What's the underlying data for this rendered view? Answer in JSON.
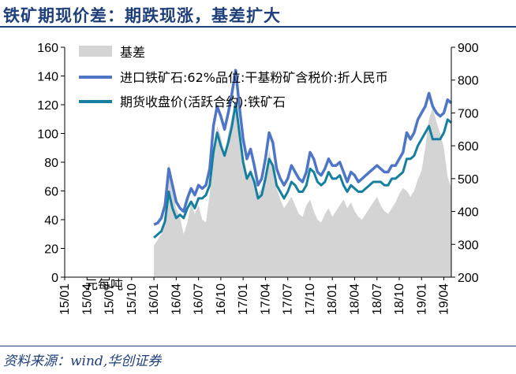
{
  "header": {
    "title": "铁矿期现价差：期跌现涨，基差扩大"
  },
  "footer": {
    "source": "资料来源：wind,华创证券"
  },
  "chart_data": {
    "type": "line",
    "unit_label": "元每吨",
    "left_axis": {
      "min": 0,
      "max": 160,
      "ticks": [
        "0",
        "20",
        "40",
        "60",
        "80",
        "100",
        "120",
        "140",
        "160"
      ]
    },
    "right_axis": {
      "min": 200,
      "max": 900,
      "ticks": [
        "200",
        "300",
        "400",
        "500",
        "600",
        "700",
        "800",
        "900"
      ]
    },
    "x_labels": [
      "15/01",
      "15/04",
      "15/07",
      "15/10",
      "16/01",
      "16/04",
      "16/07",
      "16/10",
      "17/01",
      "17/04",
      "17/07",
      "17/10",
      "18/01",
      "18/04",
      "18/07",
      "18/10",
      "19/01",
      "19/04"
    ],
    "x_range": [
      0,
      52
    ],
    "colors": {
      "basis": "#d4d4d4",
      "spot": "#4f76c6",
      "futures": "#167fa0"
    },
    "legend": [
      {
        "key": "basis",
        "label": "基差"
      },
      {
        "key": "spot",
        "label": "进口铁矿石:62%品位:干基粉矿含税价:折人民币"
      },
      {
        "key": "futures",
        "label": "期货收盘价(活跃合约):铁矿石"
      }
    ],
    "series": [
      {
        "key": "basis",
        "kind": "area",
        "axis": "left",
        "x": [
          12,
          12.5,
          13,
          13.5,
          14,
          14.5,
          15,
          15.5,
          16,
          16.5,
          17,
          17.5,
          18,
          18.5,
          19,
          19.5,
          20,
          20.5,
          21,
          21.5,
          22,
          22.5,
          23,
          23.5,
          24,
          24.5,
          25,
          25.5,
          26,
          26.5,
          27,
          27.5,
          28,
          28.5,
          29,
          29.5,
          30,
          30.5,
          31,
          31.5,
          32,
          32.5,
          33,
          33.5,
          34,
          34.5,
          35,
          35.5,
          36,
          36.5,
          37,
          37.5,
          38,
          38.5,
          39,
          39.5,
          40,
          40.5,
          41,
          41.5,
          42,
          42.5,
          43,
          43.5,
          44,
          44.5,
          45,
          45.5,
          46,
          46.5,
          47,
          47.5,
          48,
          48.5,
          49,
          49.5,
          50,
          50.5,
          51,
          51.5,
          52
        ],
        "y": [
          22,
          26,
          30,
          45,
          80,
          62,
          48,
          42,
          30,
          38,
          52,
          44,
          50,
          40,
          38,
          58,
          90,
          105,
          98,
          85,
          100,
          112,
          120,
          100,
          80,
          70,
          76,
          66,
          58,
          62,
          72,
          88,
          78,
          62,
          54,
          48,
          52,
          56,
          50,
          44,
          42,
          50,
          54,
          46,
          40,
          38,
          44,
          48,
          42,
          46,
          50,
          54,
          48,
          52,
          46,
          42,
          40,
          44,
          48,
          52,
          56,
          50,
          46,
          44,
          48,
          52,
          58,
          62,
          60,
          56,
          60,
          68,
          74,
          90,
          110,
          118,
          108,
          100,
          90,
          70,
          62
        ]
      },
      {
        "key": "spot",
        "kind": "line",
        "axis": "right",
        "x": [
          12,
          12.5,
          13,
          13.5,
          14,
          14.5,
          15,
          15.5,
          16,
          16.5,
          17,
          17.5,
          18,
          18.5,
          19,
          19.5,
          20,
          20.5,
          21,
          21.5,
          22,
          22.5,
          23,
          23.5,
          24,
          24.5,
          25,
          25.5,
          26,
          26.5,
          27,
          27.5,
          28,
          28.5,
          29,
          29.5,
          30,
          30.5,
          31,
          31.5,
          32,
          32.5,
          33,
          33.5,
          34,
          34.5,
          35,
          35.5,
          36,
          36.5,
          37,
          37.5,
          38,
          38.5,
          39,
          39.5,
          40,
          40.5,
          41,
          41.5,
          42,
          42.5,
          43,
          43.5,
          44,
          44.5,
          45,
          45.5,
          46,
          46.5,
          47,
          47.5,
          48,
          48.5,
          49,
          49.5,
          50,
          50.5,
          51,
          51.5,
          52
        ],
        "y": [
          360,
          365,
          380,
          420,
          530,
          480,
          430,
          410,
          400,
          440,
          470,
          450,
          480,
          470,
          480,
          530,
          660,
          720,
          690,
          650,
          700,
          760,
          830,
          720,
          620,
          560,
          590,
          540,
          480,
          500,
          560,
          640,
          610,
          530,
          500,
          480,
          500,
          540,
          520,
          500,
          490,
          520,
          580,
          560,
          520,
          510,
          530,
          560,
          540,
          540,
          550,
          520,
          490,
          520,
          510,
          490,
          500,
          510,
          520,
          530,
          540,
          530,
          520,
          520,
          540,
          540,
          560,
          580,
          640,
          620,
          640,
          680,
          700,
          720,
          760,
          720,
          700,
          690,
          700,
          740,
          730
        ]
      },
      {
        "key": "futures",
        "kind": "line",
        "axis": "right",
        "x": [
          12,
          12.5,
          13,
          13.5,
          14,
          14.5,
          15,
          15.5,
          16,
          16.5,
          17,
          17.5,
          18,
          18.5,
          19,
          19.5,
          20,
          20.5,
          21,
          21.5,
          22,
          22.5,
          23,
          23.5,
          24,
          24.5,
          25,
          25.5,
          26,
          26.5,
          27,
          27.5,
          28,
          28.5,
          29,
          29.5,
          30,
          30.5,
          31,
          31.5,
          32,
          32.5,
          33,
          33.5,
          34,
          34.5,
          35,
          35.5,
          36,
          36.5,
          37,
          37.5,
          38,
          38.5,
          39,
          39.5,
          40,
          40.5,
          41,
          41.5,
          42,
          42.5,
          43,
          43.5,
          44,
          44.5,
          45,
          45.5,
          46,
          46.5,
          47,
          47.5,
          48,
          48.5,
          49,
          49.5,
          50,
          50.5,
          51,
          51.5,
          52
        ],
        "y": [
          320,
          330,
          340,
          370,
          460,
          410,
          380,
          390,
          380,
          410,
          430,
          410,
          440,
          440,
          450,
          480,
          580,
          640,
          600,
          570,
          610,
          660,
          730,
          640,
          550,
          500,
          520,
          490,
          440,
          450,
          500,
          560,
          540,
          480,
          460,
          440,
          460,
          490,
          480,
          460,
          460,
          480,
          530,
          520,
          490,
          480,
          490,
          520,
          500,
          500,
          510,
          480,
          460,
          480,
          470,
          460,
          460,
          470,
          480,
          490,
          490,
          490,
          480,
          480,
          500,
          500,
          510,
          520,
          560,
          560,
          570,
          600,
          620,
          640,
          660,
          620,
          620,
          620,
          640,
          680,
          670
        ]
      }
    ]
  }
}
